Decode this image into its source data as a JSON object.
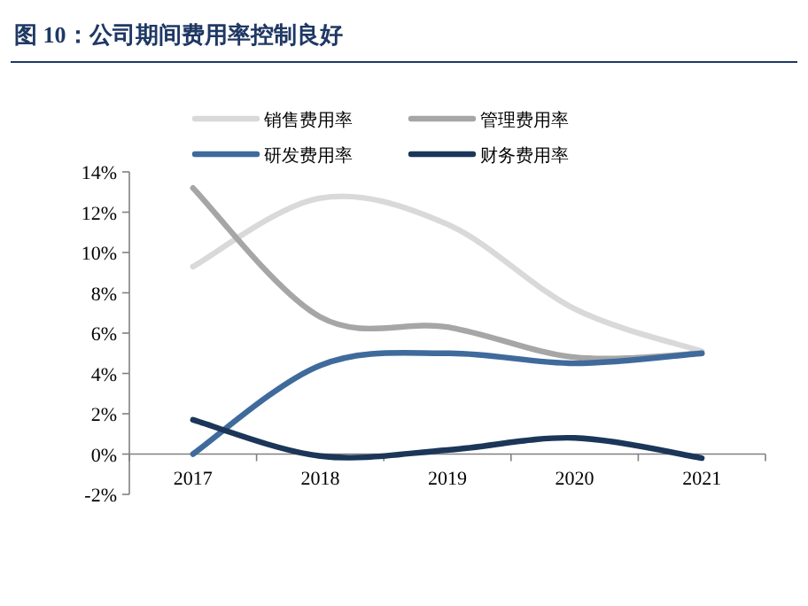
{
  "chart_data": {
    "type": "line",
    "title": "图 10：公司期间费用率控制良好",
    "categories": [
      "2017",
      "2018",
      "2019",
      "2020",
      "2021"
    ],
    "series": [
      {
        "name": "销售费用率",
        "color": "#d9d9d9",
        "values": [
          9.3,
          12.7,
          11.4,
          7.2,
          5.1
        ]
      },
      {
        "name": "管理费用率",
        "color": "#a6a6a6",
        "values": [
          13.2,
          6.8,
          6.3,
          4.8,
          5.0
        ]
      },
      {
        "name": "研发费用率",
        "color": "#3f6a9c",
        "values": [
          0.0,
          4.4,
          5.0,
          4.5,
          5.0
        ]
      },
      {
        "name": "财务费用率",
        "color": "#1b3658",
        "values": [
          1.7,
          -0.1,
          0.2,
          0.8,
          -0.2
        ]
      }
    ],
    "ylim": [
      -2,
      14
    ],
    "yticks": [
      {
        "value": -2,
        "label": "-2%"
      },
      {
        "value": 0,
        "label": "0%"
      },
      {
        "value": 2,
        "label": "2%"
      },
      {
        "value": 4,
        "label": "4%"
      },
      {
        "value": 6,
        "label": "6%"
      },
      {
        "value": 8,
        "label": "8%"
      },
      {
        "value": 10,
        "label": "10%"
      },
      {
        "value": 12,
        "label": "12%"
      },
      {
        "value": 14,
        "label": "14%"
      }
    ],
    "legend": "top",
    "grid": false,
    "marker": "none",
    "line_style": "solid"
  }
}
